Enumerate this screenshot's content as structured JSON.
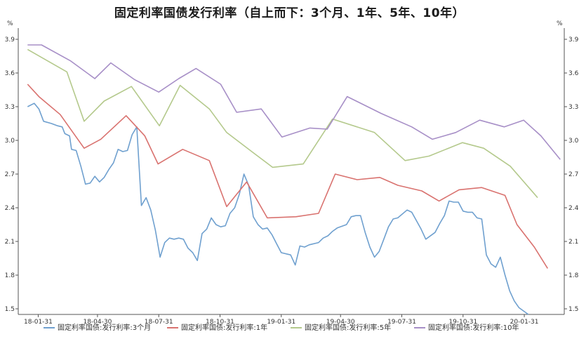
{
  "chart_data": {
    "type": "line",
    "title": "固定利率国债发行利率（自上而下：3个月、1年、5年、10年）",
    "ylabel_left": "%",
    "ylabel_right": "%",
    "ylim": [
      1.45,
      4.0
    ],
    "y_ticks": [
      "1.5",
      "1.8",
      "2.1",
      "2.4",
      "2.7",
      "3.0",
      "3.3",
      "3.6",
      "3.9"
    ],
    "x_ticks": [
      "18-01-31",
      "18-04-30",
      "18-07-31",
      "18-10-31",
      "19-01-31",
      "19-04-30",
      "19-07-31",
      "19-10-31",
      "20-01-31"
    ],
    "grid": false,
    "legend_position": "bottom",
    "series": [
      {
        "name": "固定利率国债:发行利率:3个月",
        "color": "#6fa0cf",
        "points": [
          [
            "2018-01-15",
            3.3
          ],
          [
            "2018-01-25",
            3.33
          ],
          [
            "2018-02-01",
            3.28
          ],
          [
            "2018-02-08",
            3.17
          ],
          [
            "2018-02-20",
            3.15
          ],
          [
            "2018-03-01",
            3.13
          ],
          [
            "2018-03-08",
            3.12
          ],
          [
            "2018-03-12",
            3.06
          ],
          [
            "2018-03-19",
            3.04
          ],
          [
            "2018-03-22",
            2.92
          ],
          [
            "2018-03-29",
            2.91
          ],
          [
            "2018-04-05",
            2.77
          ],
          [
            "2018-04-12",
            2.61
          ],
          [
            "2018-04-19",
            2.62
          ],
          [
            "2018-04-26",
            2.68
          ],
          [
            "2018-05-03",
            2.63
          ],
          [
            "2018-05-10",
            2.67
          ],
          [
            "2018-05-17",
            2.74
          ],
          [
            "2018-05-24",
            2.8
          ],
          [
            "2018-05-31",
            2.92
          ],
          [
            "2018-06-07",
            2.9
          ],
          [
            "2018-06-14",
            2.91
          ],
          [
            "2018-06-21",
            3.05
          ],
          [
            "2018-06-28",
            3.12
          ],
          [
            "2018-07-05",
            2.42
          ],
          [
            "2018-07-12",
            2.49
          ],
          [
            "2018-07-19",
            2.38
          ],
          [
            "2018-07-26",
            2.2
          ],
          [
            "2018-08-02",
            1.96
          ],
          [
            "2018-08-09",
            2.09
          ],
          [
            "2018-08-16",
            2.13
          ],
          [
            "2018-08-23",
            2.12
          ],
          [
            "2018-08-30",
            2.13
          ],
          [
            "2018-09-06",
            2.12
          ],
          [
            "2018-09-13",
            2.04
          ],
          [
            "2018-09-20",
            2.0
          ],
          [
            "2018-09-27",
            1.93
          ],
          [
            "2018-10-04",
            2.17
          ],
          [
            "2018-10-11",
            2.21
          ],
          [
            "2018-10-18",
            2.31
          ],
          [
            "2018-10-25",
            2.25
          ],
          [
            "2018-11-01",
            2.23
          ],
          [
            "2018-11-08",
            2.24
          ],
          [
            "2018-11-15",
            2.35
          ],
          [
            "2018-11-22",
            2.4
          ],
          [
            "2018-11-29",
            2.52
          ],
          [
            "2018-12-06",
            2.7
          ],
          [
            "2018-12-13",
            2.6
          ],
          [
            "2018-12-20",
            2.32
          ],
          [
            "2018-12-27",
            2.25
          ],
          [
            "2019-01-03",
            2.21
          ],
          [
            "2019-01-10",
            2.22
          ],
          [
            "2019-01-17",
            2.16
          ],
          [
            "2019-01-24",
            2.08
          ],
          [
            "2019-01-31",
            2.0
          ],
          [
            "2019-02-14",
            1.98
          ],
          [
            "2019-02-21",
            1.89
          ],
          [
            "2019-02-28",
            2.06
          ],
          [
            "2019-03-07",
            2.05
          ],
          [
            "2019-03-14",
            2.07
          ],
          [
            "2019-03-28",
            2.09
          ],
          [
            "2019-04-04",
            2.13
          ],
          [
            "2019-04-11",
            2.15
          ],
          [
            "2019-04-18",
            2.19
          ],
          [
            "2019-04-25",
            2.22
          ],
          [
            "2019-05-09",
            2.25
          ],
          [
            "2019-05-16",
            2.32
          ],
          [
            "2019-05-23",
            2.33
          ],
          [
            "2019-05-30",
            2.33
          ],
          [
            "2019-06-06",
            2.18
          ],
          [
            "2019-06-13",
            2.05
          ],
          [
            "2019-06-20",
            1.96
          ],
          [
            "2019-06-27",
            2.01
          ],
          [
            "2019-07-04",
            2.12
          ],
          [
            "2019-07-11",
            2.23
          ],
          [
            "2019-07-18",
            2.3
          ],
          [
            "2019-07-25",
            2.31
          ],
          [
            "2019-08-08",
            2.38
          ],
          [
            "2019-08-15",
            2.36
          ],
          [
            "2019-08-29",
            2.21
          ],
          [
            "2019-09-05",
            2.12
          ],
          [
            "2019-09-19",
            2.18
          ],
          [
            "2019-09-26",
            2.26
          ],
          [
            "2019-10-03",
            2.33
          ],
          [
            "2019-10-10",
            2.46
          ],
          [
            "2019-10-17",
            2.45
          ],
          [
            "2019-10-24",
            2.45
          ],
          [
            "2019-10-31",
            2.37
          ],
          [
            "2019-11-07",
            2.36
          ],
          [
            "2019-11-14",
            2.36
          ],
          [
            "2019-11-21",
            2.31
          ],
          [
            "2019-11-28",
            2.3
          ],
          [
            "2019-12-05",
            1.98
          ],
          [
            "2019-12-12",
            1.9
          ],
          [
            "2019-12-19",
            1.87
          ],
          [
            "2019-12-26",
            1.96
          ],
          [
            "2020-01-02",
            1.8
          ],
          [
            "2020-01-09",
            1.66
          ],
          [
            "2020-01-16",
            1.57
          ],
          [
            "2020-01-23",
            1.51
          ],
          [
            "2020-02-06",
            1.44
          ]
        ]
      },
      {
        "name": "固定利率国债:发行利率:1年",
        "color": "#d9726f",
        "points": [
          [
            "2018-01-15",
            3.5
          ],
          [
            "2018-02-01",
            3.39
          ],
          [
            "2018-03-05",
            3.23
          ],
          [
            "2018-04-10",
            2.93
          ],
          [
            "2018-05-05",
            3.01
          ],
          [
            "2018-06-12",
            3.22
          ],
          [
            "2018-07-10",
            3.04
          ],
          [
            "2018-07-30",
            2.79
          ],
          [
            "2018-09-05",
            2.92
          ],
          [
            "2018-10-15",
            2.82
          ],
          [
            "2018-11-10",
            2.41
          ],
          [
            "2018-12-10",
            2.63
          ],
          [
            "2019-01-10",
            2.31
          ],
          [
            "2019-02-22",
            2.32
          ],
          [
            "2019-03-28",
            2.35
          ],
          [
            "2019-04-22",
            2.7
          ],
          [
            "2019-05-25",
            2.65
          ],
          [
            "2019-06-28",
            2.67
          ],
          [
            "2019-07-25",
            2.6
          ],
          [
            "2019-08-30",
            2.55
          ],
          [
            "2019-09-25",
            2.46
          ],
          [
            "2019-10-25",
            2.56
          ],
          [
            "2019-11-28",
            2.58
          ],
          [
            "2020-01-02",
            2.51
          ],
          [
            "2020-01-20",
            2.25
          ],
          [
            "2020-02-15",
            2.05
          ],
          [
            "2020-03-06",
            1.86
          ]
        ]
      },
      {
        "name": "固定利率国债:发行利率:5年",
        "color": "#b4c98c",
        "points": [
          [
            "2018-01-15",
            3.81
          ],
          [
            "2018-03-15",
            3.61
          ],
          [
            "2018-04-10",
            3.17
          ],
          [
            "2018-05-10",
            3.35
          ],
          [
            "2018-06-20",
            3.48
          ],
          [
            "2018-08-01",
            3.13
          ],
          [
            "2018-09-01",
            3.49
          ],
          [
            "2018-10-15",
            3.28
          ],
          [
            "2018-11-10",
            3.07
          ],
          [
            "2018-12-20",
            2.89
          ],
          [
            "2019-01-18",
            2.76
          ],
          [
            "2019-03-05",
            2.79
          ],
          [
            "2019-04-18",
            3.19
          ],
          [
            "2019-06-20",
            3.07
          ],
          [
            "2019-08-05",
            2.82
          ],
          [
            "2019-09-10",
            2.86
          ],
          [
            "2019-10-30",
            2.98
          ],
          [
            "2019-12-01",
            2.93
          ],
          [
            "2020-01-10",
            2.77
          ],
          [
            "2020-02-20",
            2.49
          ]
        ]
      },
      {
        "name": "固定利率国债:发行利率:10年",
        "color": "#a78fc7",
        "points": [
          [
            "2018-01-15",
            3.85
          ],
          [
            "2018-02-05",
            3.85
          ],
          [
            "2018-03-20",
            3.71
          ],
          [
            "2018-04-26",
            3.55
          ],
          [
            "2018-05-20",
            3.69
          ],
          [
            "2018-06-25",
            3.54
          ],
          [
            "2018-07-31",
            3.43
          ],
          [
            "2018-08-30",
            3.55
          ],
          [
            "2018-09-25",
            3.64
          ],
          [
            "2018-11-01",
            3.5
          ],
          [
            "2018-11-25",
            3.25
          ],
          [
            "2019-01-01",
            3.28
          ],
          [
            "2019-02-01",
            3.03
          ],
          [
            "2019-03-15",
            3.11
          ],
          [
            "2019-04-10",
            3.1
          ],
          [
            "2019-05-10",
            3.39
          ],
          [
            "2019-06-30",
            3.24
          ],
          [
            "2019-08-15",
            3.12
          ],
          [
            "2019-09-15",
            3.01
          ],
          [
            "2019-10-20",
            3.07
          ],
          [
            "2019-11-25",
            3.18
          ],
          [
            "2020-01-01",
            3.12
          ],
          [
            "2020-01-30",
            3.18
          ],
          [
            "2020-02-25",
            3.04
          ],
          [
            "2020-03-25",
            2.83
          ]
        ]
      }
    ]
  }
}
